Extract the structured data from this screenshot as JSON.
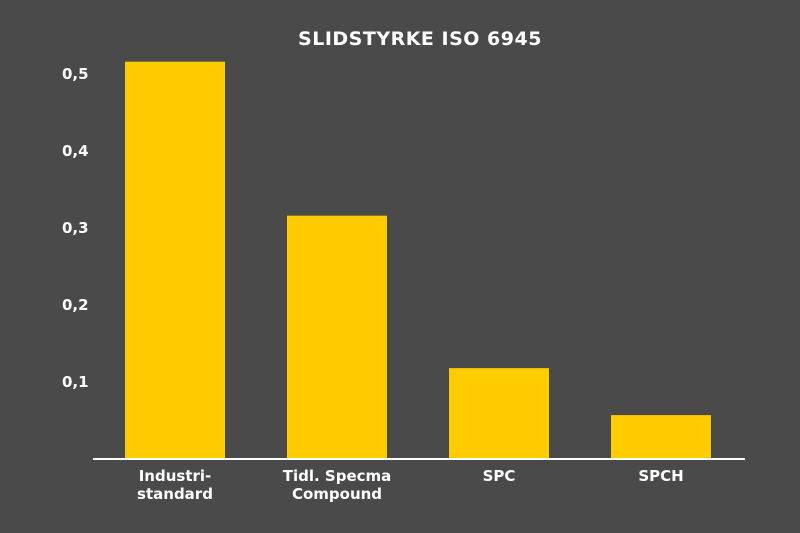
{
  "chart_data": {
    "type": "bar",
    "title": "SLIDSTYRKE ISO 6945",
    "categories": [
      [
        "Industri-",
        "standard"
      ],
      [
        "Tidl. Specma",
        "Compound"
      ],
      [
        "SPC"
      ],
      [
        "SPCH"
      ]
    ],
    "values": [
      0.516,
      0.316,
      0.118,
      0.057
    ],
    "yticks": [
      {
        "value": 0.1,
        "label": "0,1"
      },
      {
        "value": 0.2,
        "label": "0,2"
      },
      {
        "value": 0.3,
        "label": "0,3"
      },
      {
        "value": 0.4,
        "label": "0,4"
      },
      {
        "value": 0.5,
        "label": "0,5"
      }
    ],
    "ylim": [
      0,
      0.55
    ],
    "grid": false,
    "colors": {
      "background": "#4a4a4a",
      "bar": "#ffcc00",
      "axis": "#ffffff",
      "text": "#ffffff"
    }
  }
}
